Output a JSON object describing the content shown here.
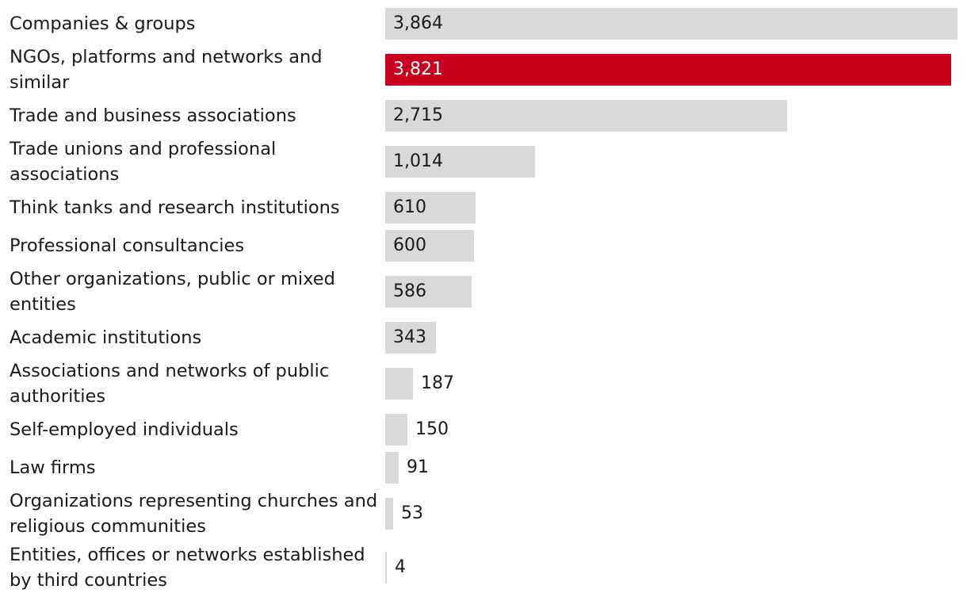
{
  "chart_data": {
    "type": "bar",
    "orientation": "horizontal",
    "categories": [
      "Companies & groups",
      "NGOs, platforms and networks and similar",
      "Trade and business associations",
      "Trade unions and professional associations",
      "Think tanks and research institutions",
      "Professional consultancies",
      "Other organizations, public or mixed entities",
      "Academic institutions",
      "Associations and networks of public authorities",
      "Self-employed individuals",
      "Law firms",
      "Organizations representing churches and religious communities",
      "Entities, offices or networks established by third countries"
    ],
    "values": [
      3864,
      3821,
      2715,
      1014,
      610,
      600,
      586,
      343,
      187,
      150,
      91,
      53,
      4
    ],
    "value_labels": [
      "3,864",
      "3,821",
      "2,715",
      "1,014",
      "610",
      "600",
      "586",
      "343",
      "187",
      "150",
      "91",
      "53",
      "4"
    ],
    "highlight_index": 1,
    "xlim": [
      0,
      3864
    ],
    "grid": false,
    "legend": "none",
    "colors": {
      "bar": "#d9d9d9",
      "highlight": "#c8001e",
      "text": "#1a1a1a",
      "highlight_text": "#ffffff"
    }
  }
}
